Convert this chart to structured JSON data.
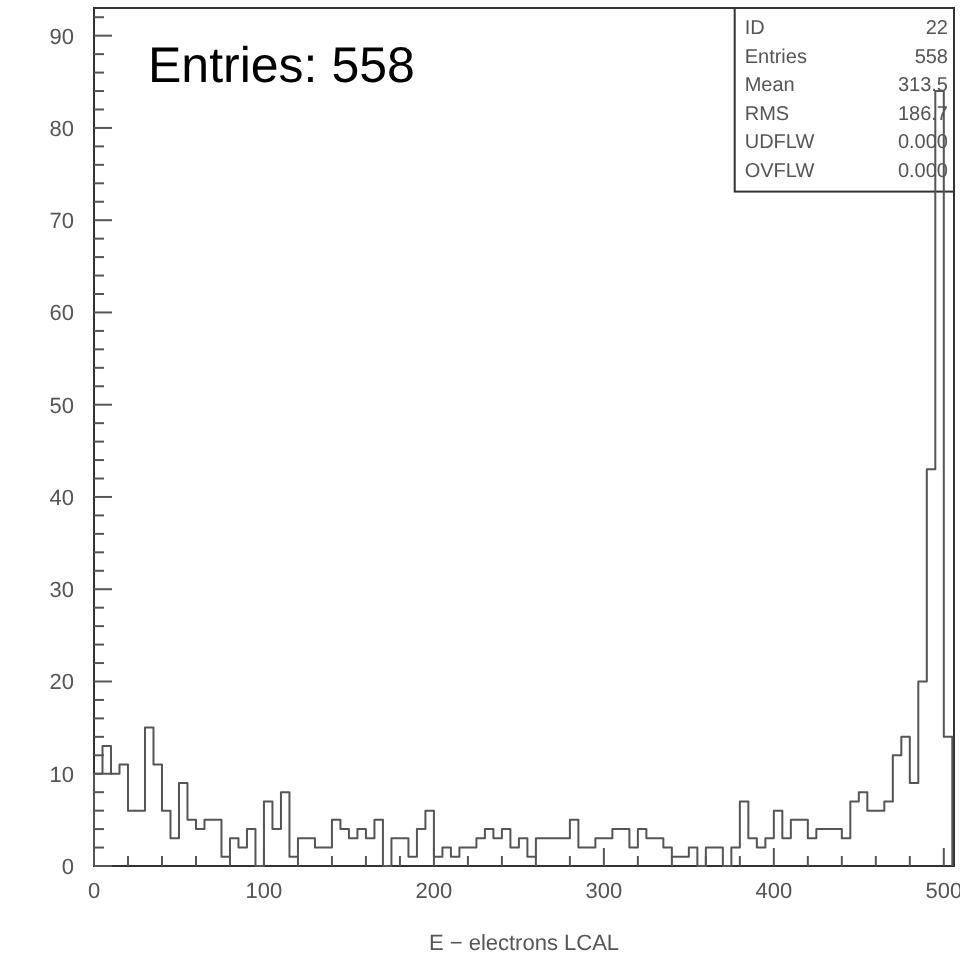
{
  "chart_data": {
    "type": "histogram",
    "xlabel": "E − electrons LCAL",
    "color": "#555555",
    "bins": [
      0,
      5,
      10,
      15,
      20,
      25,
      30,
      35,
      40,
      45,
      50,
      55,
      60,
      65,
      70,
      75,
      80,
      85,
      90,
      95,
      100,
      105,
      110,
      115,
      120,
      125,
      130,
      135,
      140,
      145,
      150,
      155,
      160,
      165,
      170,
      175,
      180,
      185,
      190,
      195,
      200,
      205,
      210,
      215,
      220,
      225,
      230,
      235,
      240,
      245,
      250,
      255,
      260,
      265,
      270,
      275,
      280,
      285,
      290,
      295,
      300,
      305,
      310,
      315,
      320,
      325,
      330,
      335,
      340,
      345,
      350,
      355,
      360,
      365,
      370,
      375,
      380,
      385,
      390,
      395,
      400,
      405,
      410,
      415,
      420,
      425,
      430,
      435,
      440,
      445,
      450,
      455,
      460,
      465,
      470,
      475,
      480,
      485,
      490,
      495,
      500,
      505
    ],
    "values": [
      10,
      13,
      10,
      11,
      6,
      6,
      15,
      11,
      6,
      3,
      9,
      5,
      4,
      5,
      5,
      1,
      3,
      2,
      4,
      0,
      7,
      4,
      8,
      1,
      3,
      3,
      2,
      2,
      5,
      4,
      3,
      4,
      3,
      5,
      0,
      3,
      3,
      1,
      4,
      6,
      1,
      2,
      1,
      2,
      2,
      3,
      4,
      3,
      4,
      2,
      3,
      1,
      3,
      3,
      3,
      3,
      5,
      2,
      2,
      3,
      3,
      4,
      4,
      2,
      4,
      3,
      3,
      2,
      1,
      1,
      2,
      0,
      2,
      2,
      0,
      2,
      7,
      3,
      2,
      3,
      6,
      3,
      5,
      5,
      3,
      4,
      4,
      4,
      3,
      7,
      8,
      6,
      6,
      7,
      12,
      14,
      9,
      20,
      43,
      84,
      14
    ],
    "xlim": [
      0,
      506
    ],
    "ylim": [
      0,
      93
    ],
    "xticks": [
      0,
      {
        "value": 20,
        "label": null
      },
      {
        "value": 40,
        "label": null
      },
      {
        "value": 60,
        "label": null
      },
      {
        "value": 80,
        "label": null
      },
      100,
      {
        "value": 120,
        "label": null
      },
      {
        "value": 140,
        "label": null
      },
      {
        "value": 160,
        "label": null
      },
      {
        "value": 180,
        "label": null
      },
      200,
      {
        "value": 220,
        "label": null
      },
      {
        "value": 240,
        "label": null
      },
      {
        "value": 260,
        "label": null
      },
      {
        "value": 280,
        "label": null
      },
      300,
      {
        "value": 320,
        "label": null
      },
      {
        "value": 340,
        "label": null
      },
      {
        "value": 360,
        "label": null
      },
      {
        "value": 380,
        "label": null
      },
      400,
      {
        "value": 420,
        "label": null
      },
      {
        "value": 440,
        "label": null
      },
      {
        "value": 460,
        "label": null
      },
      {
        "value": 480,
        "label": null
      },
      500
    ],
    "yticks": [
      0,
      {
        "value": 2,
        "label": null
      },
      {
        "value": 4,
        "label": null
      },
      {
        "value": 6,
        "label": null
      },
      {
        "value": 8,
        "label": null
      },
      10,
      {
        "value": 12,
        "label": null
      },
      {
        "value": 14,
        "label": null
      },
      {
        "value": 16,
        "label": null
      },
      {
        "value": 18,
        "label": null
      },
      20,
      {
        "value": 22,
        "label": null
      },
      {
        "value": 24,
        "label": null
      },
      {
        "value": 26,
        "label": null
      },
      {
        "value": 28,
        "label": null
      },
      30,
      {
        "value": 32,
        "label": null
      },
      {
        "value": 34,
        "label": null
      },
      {
        "value": 36,
        "label": null
      },
      {
        "value": 38,
        "label": null
      },
      40,
      {
        "value": 42,
        "label": null
      },
      {
        "value": 44,
        "label": null
      },
      {
        "value": 46,
        "label": null
      },
      {
        "value": 48,
        "label": null
      },
      50,
      {
        "value": 52,
        "label": null
      },
      {
        "value": 54,
        "label": null
      },
      {
        "value": 56,
        "label": null
      },
      {
        "value": 58,
        "label": null
      },
      60,
      {
        "value": 62,
        "label": null
      },
      {
        "value": 64,
        "label": null
      },
      {
        "value": 66,
        "label": null
      },
      {
        "value": 68,
        "label": null
      },
      70,
      {
        "value": 72,
        "label": null
      },
      {
        "value": 74,
        "label": null
      },
      {
        "value": 76,
        "label": null
      },
      {
        "value": 78,
        "label": null
      },
      80,
      {
        "value": 82,
        "label": null
      },
      {
        "value": 84,
        "label": null
      },
      {
        "value": 86,
        "label": null
      },
      {
        "value": 88,
        "label": null
      },
      90,
      {
        "value": 92,
        "label": null
      }
    ],
    "grid": false,
    "annotations": [
      "Entries: 558",
      "ID 22",
      "Entries 558",
      "Mean 313.5",
      "RMS 186.7",
      "UDFLW 0.000",
      "OVFLW 0.000"
    ]
  }
}
